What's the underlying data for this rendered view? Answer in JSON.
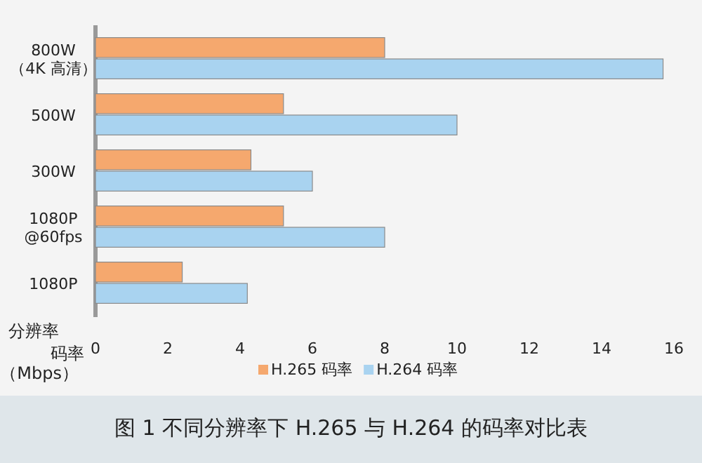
{
  "chart_data": {
    "type": "bar",
    "orientation": "horizontal",
    "title": "图 1 不同分辨率下 H.265 与 H.264 的码率对比表",
    "ylabel": "分辨率",
    "xlabel": "码率（Mbps）",
    "categories": [
      "800W（4K 高清）",
      "500W",
      "300W",
      "1080P @60fps",
      "1080P"
    ],
    "series": [
      {
        "name": "H.265 码率",
        "color": "#f5a86e",
        "values": [
          8,
          5.2,
          4.3,
          5.2,
          2.4
        ]
      },
      {
        "name": "H.264 码率",
        "color": "#a9d3f0",
        "values": [
          15.7,
          10,
          6,
          8,
          4.2
        ]
      }
    ],
    "xlim": [
      0,
      16
    ],
    "xticks": [
      0,
      2,
      4,
      6,
      8,
      10,
      12,
      14,
      16
    ],
    "grid": false,
    "legend": "bottom"
  }
}
